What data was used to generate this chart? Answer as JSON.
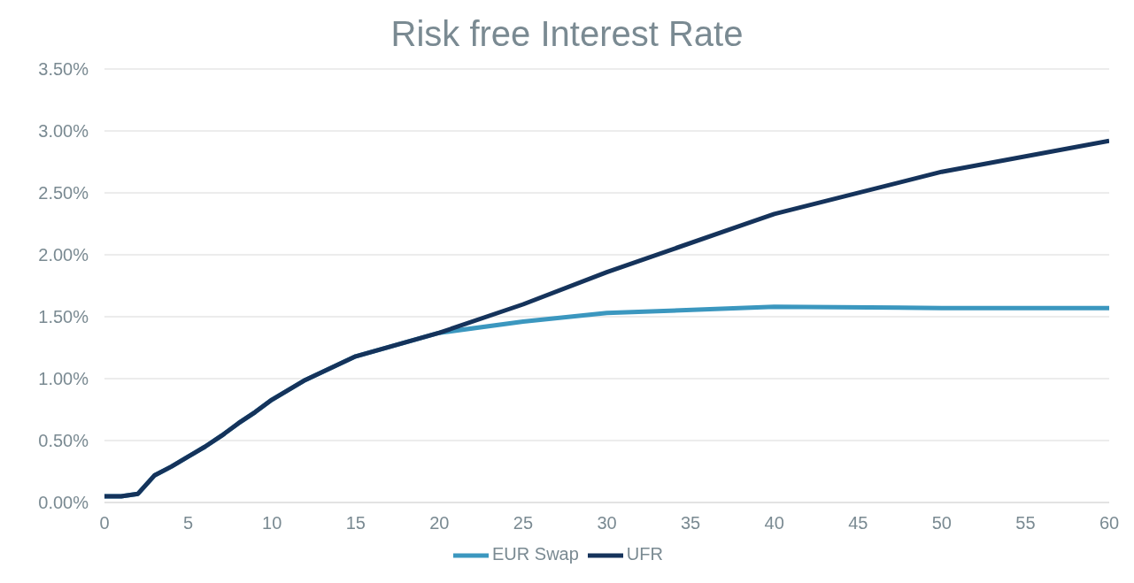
{
  "chart_data": {
    "type": "line",
    "title": "Risk free Interest Rate",
    "x": [
      0,
      1,
      2,
      3,
      4,
      5,
      6,
      7,
      8,
      9,
      10,
      12,
      15,
      20,
      25,
      30,
      40,
      50,
      60
    ],
    "series": [
      {
        "name": "EUR Swap",
        "color": "#3b97bf",
        "values": [
          0.05,
          0.05,
          0.07,
          0.22,
          0.29,
          0.37,
          0.45,
          0.54,
          0.64,
          0.73,
          0.83,
          0.99,
          1.18,
          1.37,
          1.46,
          1.53,
          1.58,
          1.57,
          1.57
        ]
      },
      {
        "name": "UFR",
        "color": "#15335b",
        "values": [
          0.05,
          0.05,
          0.07,
          0.22,
          0.29,
          0.37,
          0.45,
          0.54,
          0.64,
          0.73,
          0.83,
          0.99,
          1.18,
          1.37,
          1.6,
          1.86,
          2.33,
          2.67,
          2.92
        ]
      }
    ],
    "xlim": [
      0,
      60
    ],
    "xticks": [
      0,
      5,
      10,
      15,
      20,
      25,
      30,
      35,
      40,
      45,
      50,
      55,
      60
    ],
    "ylim": [
      0,
      3.5
    ],
    "yticks": [
      {
        "value": 0,
        "label": "0.00%"
      },
      {
        "value": 0.5,
        "label": "0.50%"
      },
      {
        "value": 1,
        "label": "1.00%"
      },
      {
        "value": 1.5,
        "label": "1.50%"
      },
      {
        "value": 2,
        "label": "2.00%"
      },
      {
        "value": 2.5,
        "label": "2.50%"
      },
      {
        "value": 3,
        "label": "3.00%"
      },
      {
        "value": 3.5,
        "label": "3.50%"
      }
    ],
    "grid": "y",
    "legend": "bottom",
    "marker": "none",
    "line_style": "solid"
  }
}
